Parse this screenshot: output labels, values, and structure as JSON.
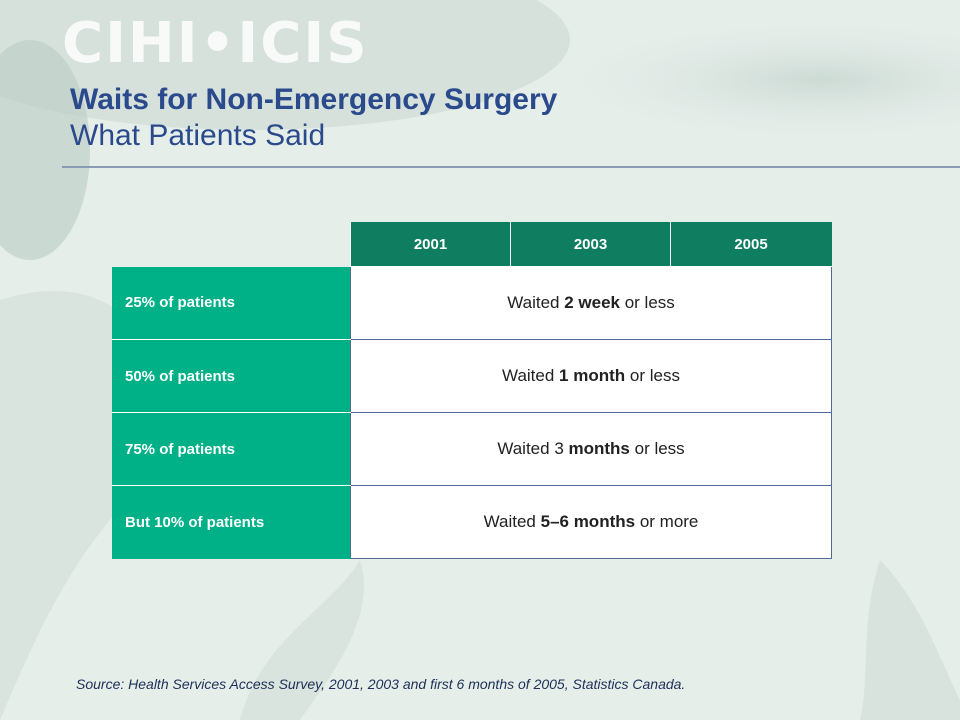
{
  "logo": {
    "text": "CIHI•ICIS"
  },
  "header": {
    "title": "Waits for Non-Emergency Surgery",
    "subtitle": "What Patients Said"
  },
  "table": {
    "columns": [
      "2001",
      "2003",
      "2005"
    ],
    "rows": [
      {
        "label": "25% of patients",
        "pre": "Waited ",
        "bold": "2 week",
        "post": " or less"
      },
      {
        "label": "50% of patients",
        "pre": "Waited ",
        "bold": "1 month",
        "post": " or less"
      },
      {
        "label": "75% of patients",
        "pre": "Waited 3 ",
        "bold": "months",
        "post": " or less"
      },
      {
        "label": "But 10% of patients",
        "pre": "Waited ",
        "bold": "5–6 months",
        "post": " or more"
      }
    ]
  },
  "footer": {
    "source": "Source: Health Services Access Survey, 2001, 2003 and first 6 months of 2005, Statistics Canada."
  },
  "colors": {
    "header_fill": "#0f7d60",
    "row_label_fill": "#00b087",
    "title_color": "#2a4a8c"
  }
}
